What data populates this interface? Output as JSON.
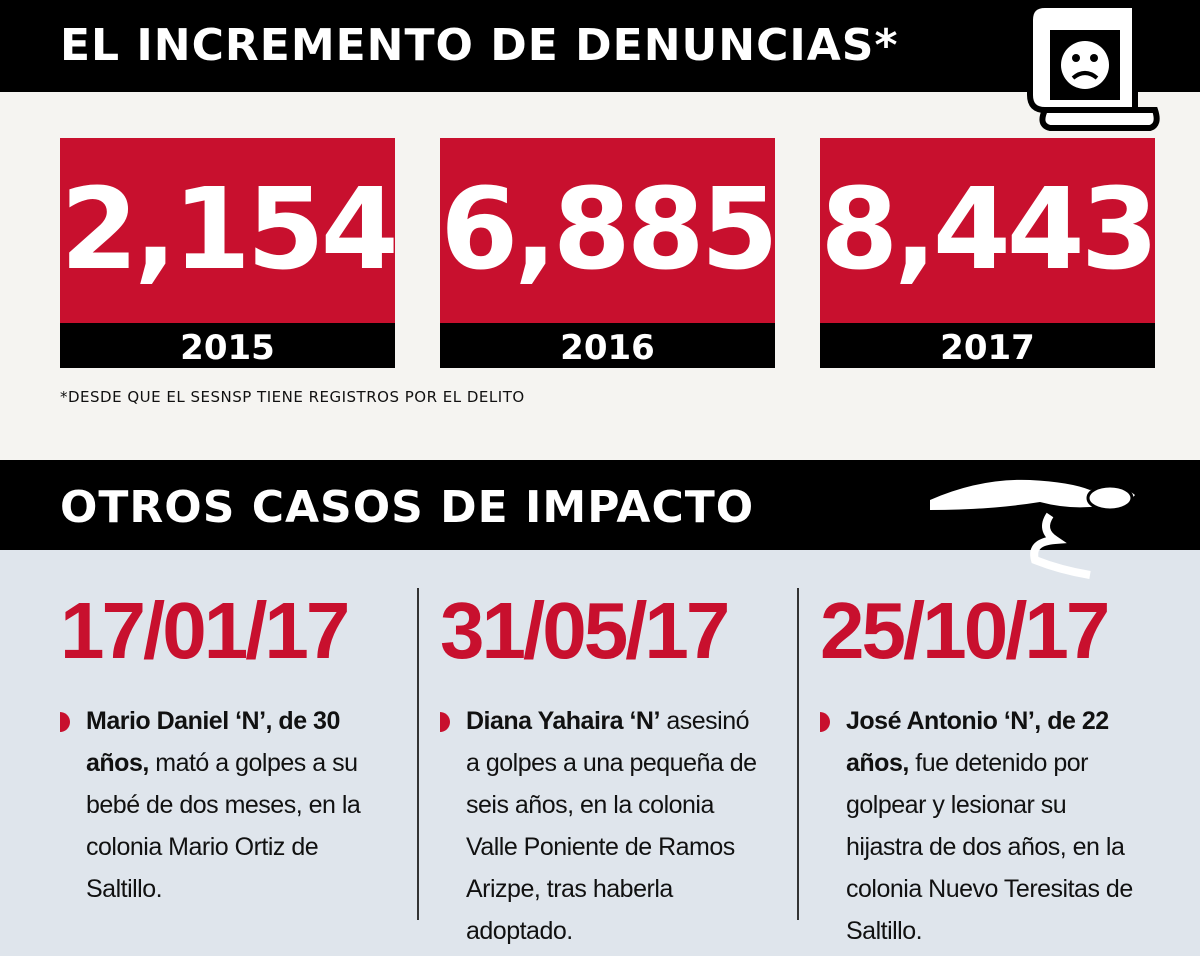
{
  "header": {
    "title": "EL INCREMENTO DE DENUNCIAS*"
  },
  "stats": [
    {
      "value": "2,154",
      "year": "2015"
    },
    {
      "value": "6,885",
      "year": "2016"
    },
    {
      "value": "8,443",
      "year": "2017"
    }
  ],
  "footnote": "*DESDE QUE EL SESNSP TIENE REGISTROS POR EL DELITO",
  "section": {
    "title": "OTROS CASOS DE IMPACTO"
  },
  "cases": [
    {
      "date": "17/01/17",
      "bold": "Mario Daniel ‘N’, de 30 años,",
      "text": "mató a golpes a su bebé de dos meses, en la colonia Mario Ortiz de Saltillo."
    },
    {
      "date": "31/05/17",
      "bold": "Diana Yahaira ‘N’",
      "text": "asesinó a golpes a una pequeña de seis años, en la colonia Valle Poniente de Ramos Arizpe, tras haberla adoptado."
    },
    {
      "date": "25/10/17",
      "bold": "José Antonio ‘N’, de 22 años,",
      "text": "fue detenido por golpear y lesionar su hijastra de dos años, en la colonia Nuevo Teresitas de Saltillo."
    }
  ]
}
